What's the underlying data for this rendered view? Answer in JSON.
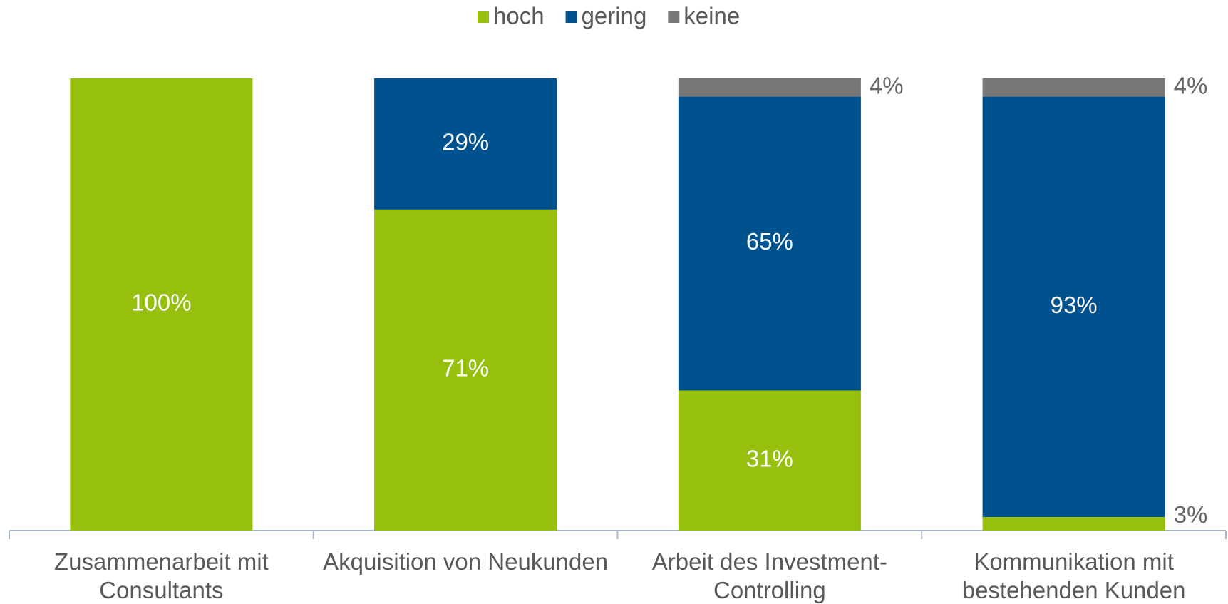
{
  "chart_data": {
    "type": "stacked_bar",
    "categories": [
      "Zusammenarbeit mit Consultants",
      "Akquisition von Neukunden",
      "Arbeit des Investment-Controlling",
      "Kommunikation mit bestehenden Kunden"
    ],
    "series": [
      {
        "name": "hoch",
        "color": "#97bf0d",
        "values": [
          100,
          71,
          31,
          3
        ],
        "value_labels": [
          "100%",
          "71%",
          "31%",
          "3%"
        ]
      },
      {
        "name": "gering",
        "color": "#00528f",
        "values": [
          null,
          29,
          65,
          93
        ],
        "value_labels": [
          null,
          "29%",
          "65%",
          "93%"
        ]
      },
      {
        "name": "keine",
        "color": "#777777",
        "values": [
          null,
          null,
          4,
          4
        ],
        "value_labels": [
          null,
          null,
          "4%",
          "4%"
        ]
      }
    ],
    "ylim": [
      0,
      100
    ],
    "legend": "top"
  }
}
